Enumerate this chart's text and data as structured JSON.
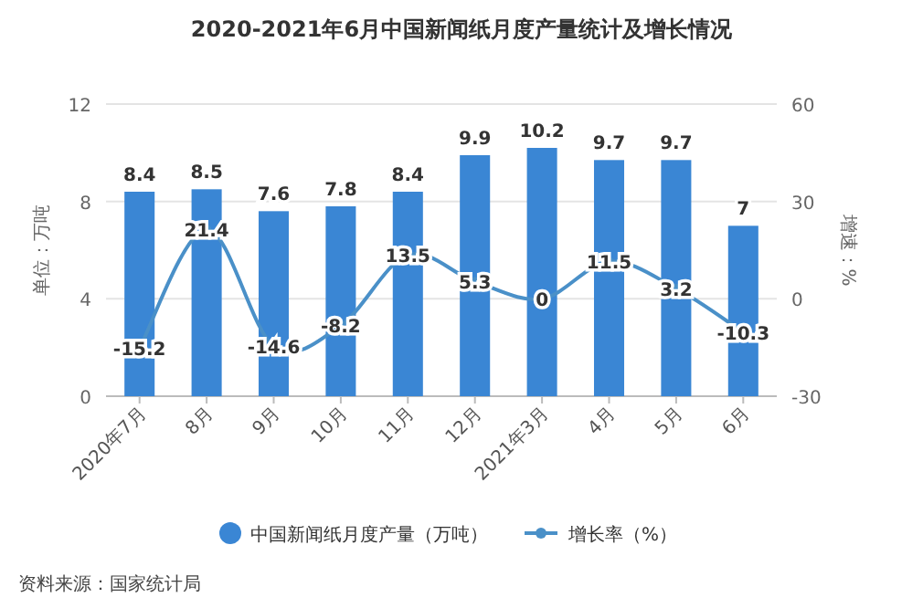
{
  "chart_data": {
    "type": "bar",
    "title": "2020-2021年6月中国新闻纸月度产量统计及增长情况",
    "ylabel": "单位：万吨",
    "y2label": "增速：%",
    "categories": [
      "2020年7月",
      "8月",
      "9月",
      "10月",
      "11月",
      "12月",
      "2021年3月",
      "4月",
      "5月",
      "6月"
    ],
    "series": [
      {
        "name": "中国新闻纸月度产量（万吨）",
        "color": "#3a86d4",
        "values": [
          8.4,
          8.5,
          7.6,
          7.8,
          8.4,
          9.9,
          10.2,
          9.7,
          9.7,
          7
        ]
      },
      {
        "name": "增长率（%）",
        "type": "line",
        "axis": "y2",
        "color": "#4a90c8",
        "marker": "circle",
        "values": [
          -15.2,
          21.4,
          -14.6,
          -8.2,
          13.5,
          5.3,
          0,
          11.5,
          3.2,
          -10.3
        ]
      }
    ],
    "ylim": [
      0,
      12
    ],
    "yticks": [
      0,
      4,
      8,
      12
    ],
    "y2lim": [
      -30,
      60
    ],
    "y2ticks": [
      -30,
      0,
      30,
      60
    ],
    "grid": "y",
    "legend": "bottom",
    "data_labels": true,
    "annotations": [
      "资料来源：国家统计局"
    ]
  }
}
